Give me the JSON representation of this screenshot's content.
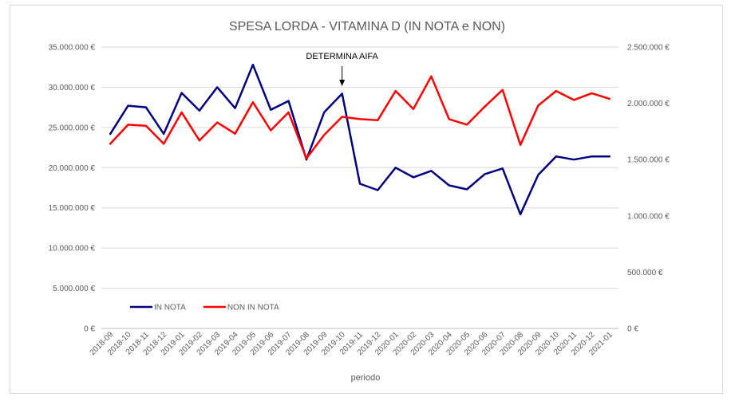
{
  "chart_data": {
    "type": "line",
    "title": "SPESA LORDA - VITAMINA D (IN NOTA e NON)",
    "xlabel": "periodo",
    "categories": [
      "2018-09",
      "2018-10",
      "2018-11",
      "2018-12",
      "2019-01",
      "2019-02",
      "2019-03",
      "2019-04",
      "2019-05",
      "2019-06",
      "2019-07",
      "2019-08",
      "2019-09",
      "2019-10",
      "2019-11",
      "2019-12",
      "2020-01",
      "2020-02",
      "2020-03",
      "2020-04",
      "2020-05",
      "2020-06",
      "2020-07",
      "2020-08",
      "2020-09",
      "2020-10",
      "2020-11",
      "2020-12",
      "2021-01"
    ],
    "y_left": {
      "ylim": [
        0,
        35000000
      ],
      "ticks": [
        "0 €",
        "5.000.000 €",
        "10.000.000 €",
        "15.000.000 €",
        "20.000.000 €",
        "25.000.000 €",
        "30.000.000 €",
        "35.000.000 €"
      ]
    },
    "y_right": {
      "ylim": [
        0,
        2500000
      ],
      "ticks": [
        "0 €",
        "500.000 €",
        "1.000.000 €",
        "1.500.000 €",
        "2.000.000 €",
        "2.500.000 €"
      ]
    },
    "series": [
      {
        "name": "IN NOTA",
        "axis": "left",
        "color": "#000080",
        "values": [
          24200000,
          27700000,
          27500000,
          24200000,
          29300000,
          27100000,
          30000000,
          27400000,
          32800000,
          27200000,
          28300000,
          21000000,
          26900000,
          29200000,
          18000000,
          17200000,
          20000000,
          18800000,
          19600000,
          17800000,
          17300000,
          19200000,
          19900000,
          14200000,
          19100000,
          21400000,
          21000000,
          21400000,
          21400000
        ]
      },
      {
        "name": "NON IN NOTA",
        "axis": "right",
        "color": "#ff0000",
        "values": [
          1640000,
          1810000,
          1800000,
          1640000,
          1920000,
          1670000,
          1830000,
          1730000,
          2010000,
          1760000,
          1920000,
          1510000,
          1720000,
          1880000,
          1860000,
          1850000,
          2110000,
          1950000,
          2240000,
          1860000,
          1810000,
          1970000,
          2120000,
          1630000,
          1980000,
          2110000,
          2030000,
          2090000,
          2040000
        ]
      }
    ],
    "annotations": [
      {
        "text": "DETERMINA AIFA",
        "category": "2019-10"
      }
    ],
    "legend_position": "bottom-left",
    "grid": true
  }
}
